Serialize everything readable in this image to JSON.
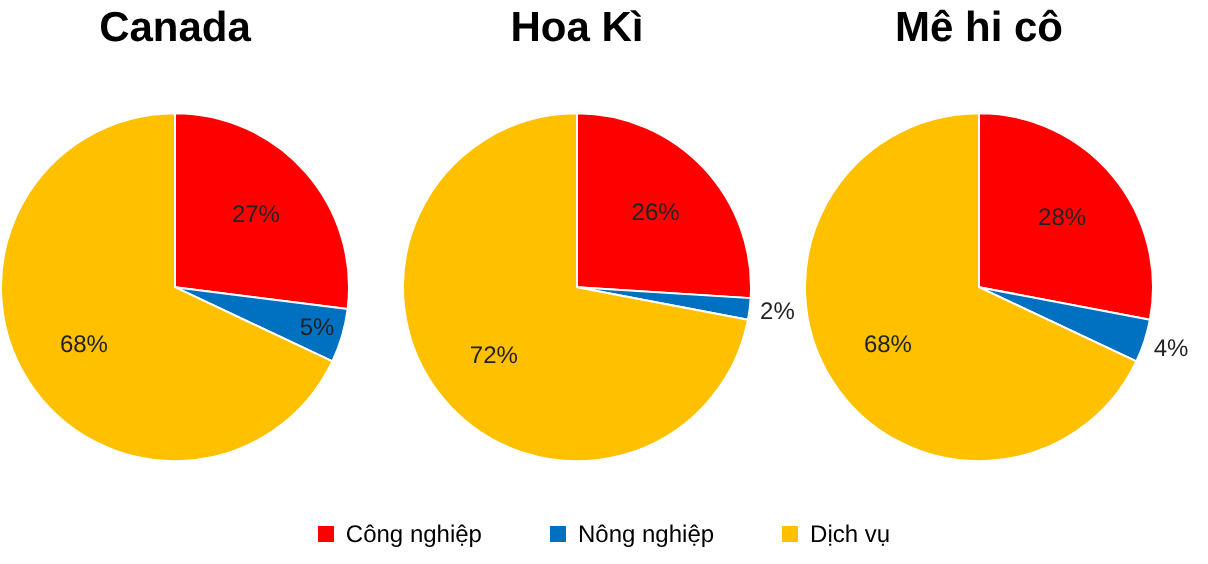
{
  "chart_data": [
    {
      "type": "pie",
      "title": "Canada",
      "categories": [
        null,
        null,
        null
      ],
      "values": [
        27,
        5,
        68
      ],
      "value_labels": [
        "27%",
        "5%",
        "68%"
      ],
      "colors": [
        "#ff0000",
        "#0070c0",
        "#ffc000"
      ],
      "legend": false
    },
    {
      "type": "pie",
      "title": "Hoa Kì",
      "categories": [
        "Công nghiệp",
        "Nông nghiệp",
        "Dịch vụ"
      ],
      "values": [
        26,
        2,
        72
      ],
      "value_labels": [
        "26%",
        "2%",
        "72%"
      ],
      "colors": [
        "#ff0000",
        "#0070c0",
        "#ffc000"
      ],
      "legend": "bottom"
    },
    {
      "type": "pie",
      "title": "Mê hi cô",
      "categories": [
        null,
        null,
        null
      ],
      "values": [
        28,
        4,
        68
      ],
      "value_labels": [
        "28%",
        "4%",
        "68%"
      ],
      "colors": [
        "#ff0000",
        "#0070c0",
        "#ffc000"
      ],
      "legend": false
    }
  ]
}
